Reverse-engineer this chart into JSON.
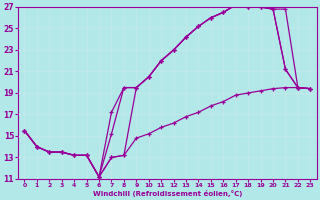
{
  "xlabel": "Windchill (Refroidissement éolien,°C)",
  "bg_color": "#b2e8e8",
  "line_color": "#990099",
  "grid_color": "#c8e8e8",
  "xlim": [
    -0.5,
    23.5
  ],
  "ylim": [
    11,
    27
  ],
  "xticks": [
    0,
    1,
    2,
    3,
    4,
    5,
    6,
    7,
    8,
    9,
    10,
    11,
    12,
    13,
    14,
    15,
    16,
    17,
    18,
    19,
    20,
    21,
    22,
    23
  ],
  "yticks": [
    11,
    13,
    15,
    17,
    19,
    21,
    23,
    25,
    27
  ],
  "lines": [
    {
      "x": [
        0,
        1,
        2,
        3,
        4,
        5,
        6,
        7,
        8,
        9,
        10,
        11,
        12,
        13,
        14,
        15,
        16,
        17,
        18,
        19,
        20,
        21,
        22,
        23
      ],
      "y": [
        15.5,
        14.0,
        13.5,
        13.5,
        13.2,
        13.2,
        11.2,
        17.2,
        19.5,
        19.5,
        20.5,
        22.0,
        23.0,
        24.2,
        25.2,
        26.0,
        26.5,
        27.2,
        27.0,
        27.0,
        26.8,
        21.2,
        19.5,
        19.4
      ]
    },
    {
      "x": [
        0,
        1,
        2,
        3,
        4,
        5,
        6,
        7,
        8,
        9,
        10,
        11,
        12,
        13,
        14,
        15,
        16,
        17,
        18,
        19,
        20,
        21,
        22,
        23
      ],
      "y": [
        15.5,
        14.0,
        13.5,
        13.5,
        13.2,
        13.2,
        11.2,
        15.2,
        19.5,
        19.5,
        20.5,
        22.0,
        23.0,
        24.2,
        25.2,
        26.0,
        26.5,
        27.2,
        27.0,
        27.0,
        26.8,
        26.8,
        19.5,
        19.4
      ]
    },
    {
      "x": [
        0,
        1,
        2,
        3,
        4,
        5,
        6,
        7,
        8,
        9,
        10,
        11,
        12,
        13,
        14,
        15,
        16,
        17,
        18,
        19,
        20,
        21,
        22,
        23
      ],
      "y": [
        15.5,
        14.0,
        13.5,
        13.5,
        13.2,
        13.2,
        11.2,
        13.0,
        13.2,
        19.5,
        20.5,
        22.0,
        23.0,
        24.2,
        25.2,
        26.0,
        26.5,
        27.2,
        27.0,
        27.0,
        26.8,
        21.2,
        19.5,
        19.4
      ]
    },
    {
      "x": [
        0,
        1,
        2,
        3,
        4,
        5,
        6,
        7,
        8,
        9,
        10,
        11,
        12,
        13,
        14,
        15,
        16,
        17,
        18,
        19,
        20,
        21,
        22,
        23
      ],
      "y": [
        15.5,
        14.0,
        13.5,
        13.5,
        13.2,
        13.2,
        11.2,
        13.0,
        13.2,
        14.8,
        15.2,
        15.8,
        16.2,
        16.8,
        17.2,
        17.8,
        18.2,
        18.8,
        19.0,
        19.2,
        19.4,
        19.5,
        19.5,
        19.4
      ]
    }
  ]
}
